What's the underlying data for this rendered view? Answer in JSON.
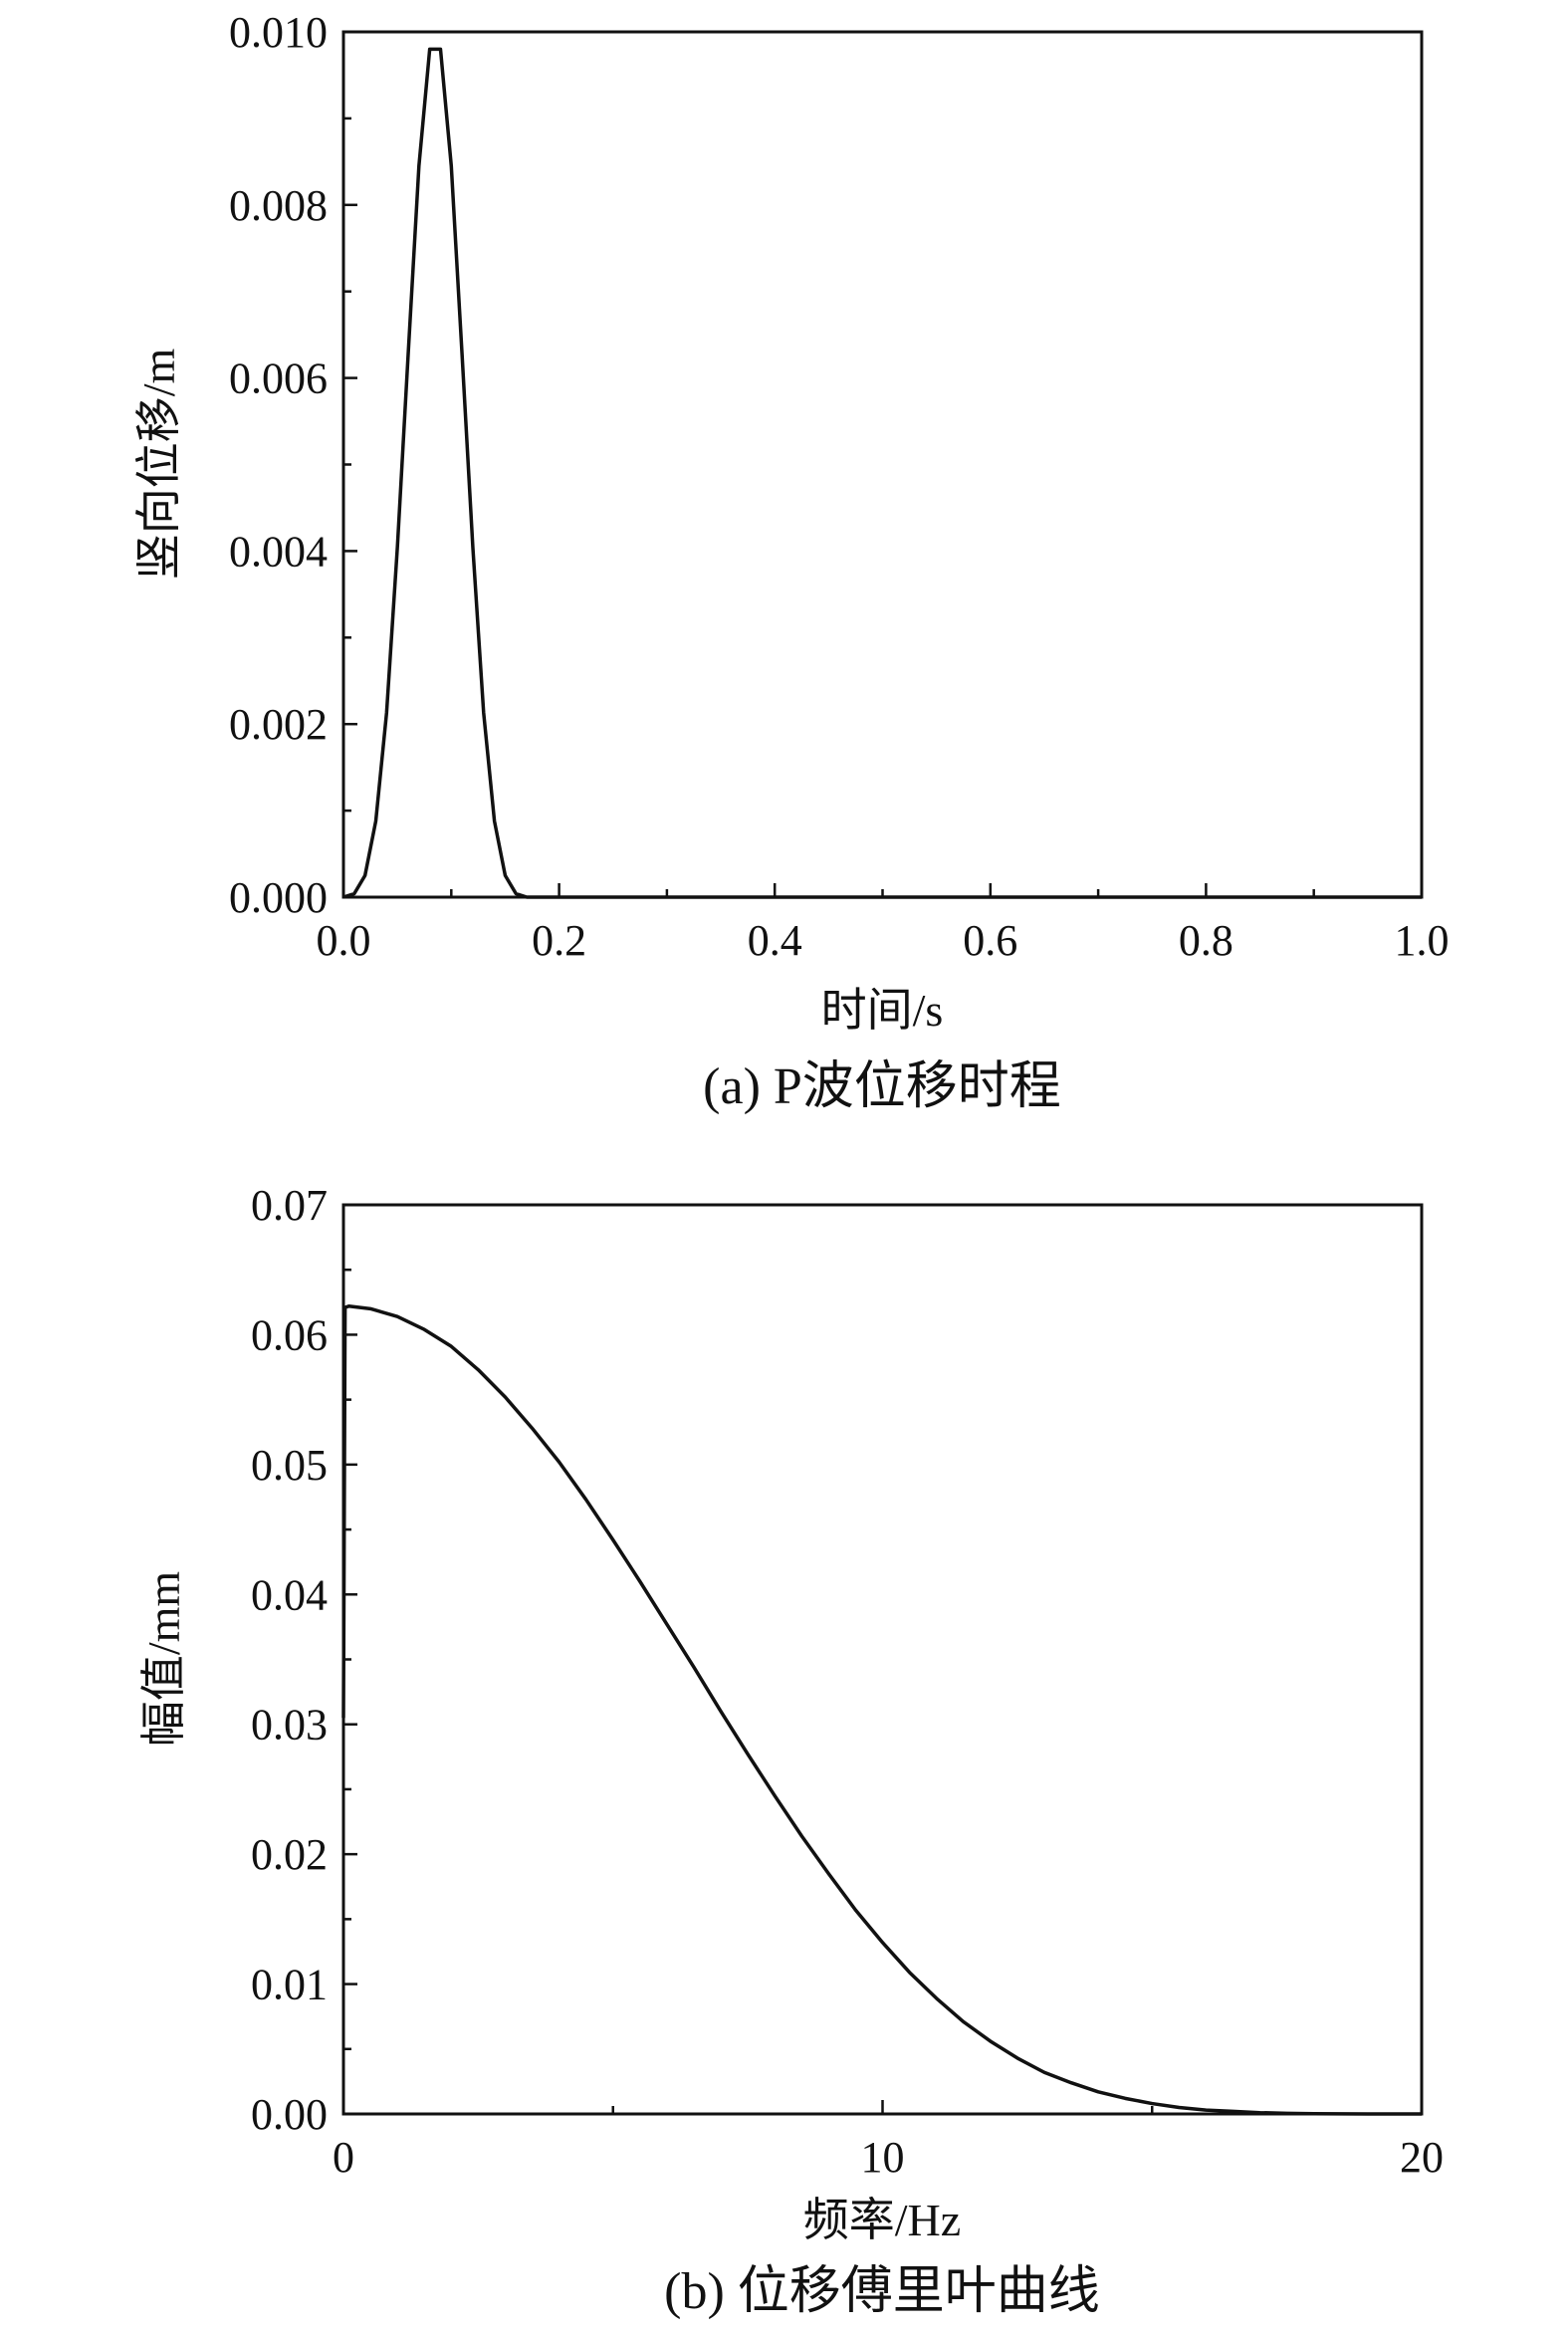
{
  "chart_data": [
    {
      "type": "line",
      "title": "(a) P波位移时程",
      "xlabel": "时间/s",
      "ylabel": "竖向位移/m",
      "xlim": [
        0,
        1.0
      ],
      "ylim": [
        0,
        0.01
      ],
      "xticks": [
        "0.0",
        "0.2",
        "0.4",
        "0.6",
        "0.8",
        "1.0"
      ],
      "yticks": [
        "0.000",
        "0.002",
        "0.004",
        "0.006",
        "0.008",
        "0.010"
      ],
      "xtick_values": [
        0,
        0.2,
        0.4,
        0.6,
        0.8,
        1.0
      ],
      "ytick_values": [
        0,
        0.002,
        0.004,
        0.006,
        0.008,
        0.01
      ],
      "grid": false,
      "x": [
        0.0,
        0.01,
        0.02,
        0.03,
        0.04,
        0.05,
        0.06,
        0.07,
        0.08,
        0.09,
        0.1,
        0.11,
        0.12,
        0.13,
        0.14,
        0.15,
        0.16,
        0.17,
        0.2,
        0.4,
        0.6,
        0.8,
        1.0
      ],
      "series": [
        {
          "values": [
            0.0,
            4e-05,
            0.00025,
            0.00088,
            0.00213,
            0.00404,
            0.00627,
            0.00845,
            0.0098,
            0.0098,
            0.00845,
            0.00627,
            0.00404,
            0.00213,
            0.00088,
            0.00025,
            4e-05,
            0.0,
            0.0,
            0.0,
            0.0,
            0.0,
            0.0
          ]
        }
      ]
    },
    {
      "type": "line",
      "title": "(b) 位移傅里叶曲线",
      "xlabel": "频率/Hz",
      "ylabel": "幅值/mm",
      "xlim": [
        0,
        20
      ],
      "ylim": [
        0,
        0.07
      ],
      "xticks": [
        "0",
        "10",
        "20"
      ],
      "yticks": [
        "0.00",
        "0.01",
        "0.02",
        "0.03",
        "0.04",
        "0.05",
        "0.06",
        "0.07"
      ],
      "xtick_values": [
        0,
        10,
        20
      ],
      "ytick_values": [
        0,
        0.01,
        0.02,
        0.03,
        0.04,
        0.05,
        0.06,
        0.07
      ],
      "grid": false,
      "x": [
        0.0,
        0.03,
        0.1,
        0.5,
        1,
        1.5,
        2,
        2.5,
        3,
        3.5,
        4,
        4.5,
        5,
        5.5,
        6,
        6.5,
        7,
        7.5,
        8,
        8.5,
        9,
        9.5,
        10,
        10.5,
        11,
        11.5,
        12,
        12.5,
        13,
        13.5,
        14,
        14.5,
        15,
        15.5,
        16,
        16.5,
        17,
        17.5,
        18,
        18.5,
        19,
        19.5,
        20
      ],
      "series": [
        {
          "values": [
            0.0305,
            0.0621,
            0.0622,
            0.062,
            0.0614,
            0.0604,
            0.0591,
            0.0573,
            0.0552,
            0.0528,
            0.0502,
            0.0473,
            0.0442,
            0.041,
            0.0377,
            0.0344,
            0.031,
            0.0277,
            0.0245,
            0.0214,
            0.0185,
            0.0157,
            0.0132,
            0.0109,
            0.0089,
            0.0071,
            0.0056,
            0.0043,
            0.0032,
            0.0024,
            0.0017,
            0.0012,
            0.0008,
            0.0005,
            0.0003,
            0.0002,
            0.0001,
            5e-05,
            2e-05,
            1e-05,
            0.0,
            0.0,
            0.0
          ]
        }
      ]
    }
  ]
}
